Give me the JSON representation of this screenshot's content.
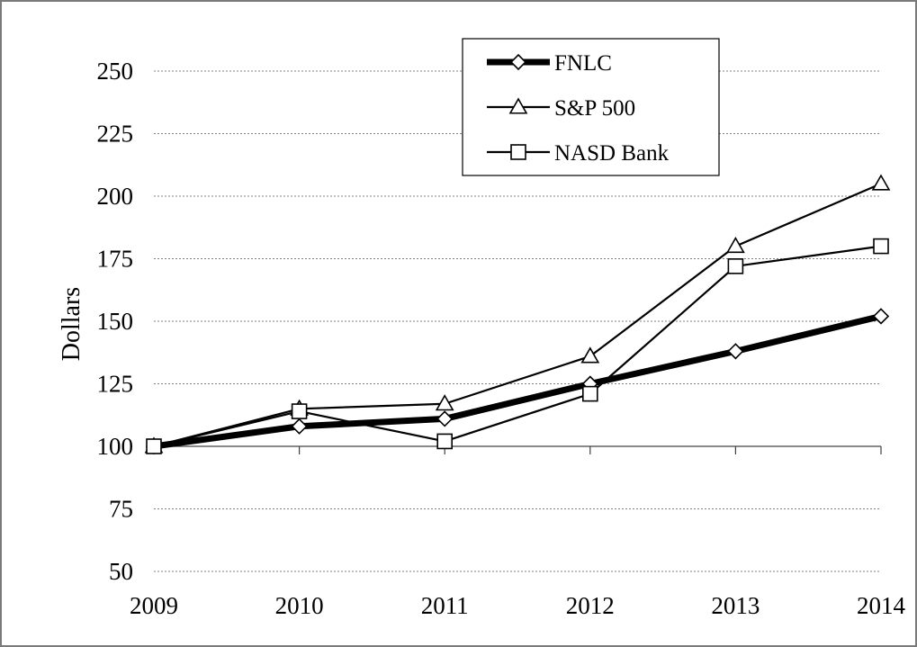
{
  "chart_data": {
    "type": "line",
    "title": "",
    "xlabel": "",
    "ylabel": "Dollars",
    "x": [
      "2009",
      "2010",
      "2011",
      "2012",
      "2013",
      "2014"
    ],
    "ylim": [
      50,
      250
    ],
    "yticks": [
      50,
      75,
      100,
      125,
      150,
      175,
      200,
      225,
      250
    ],
    "grid": "horizontal dotted",
    "legend_position": "top-right",
    "series": [
      {
        "name": "FNLC",
        "marker": "diamond",
        "style": "thick",
        "values": [
          100,
          108,
          111,
          125,
          138,
          152
        ]
      },
      {
        "name": "S&P 500",
        "marker": "triangle",
        "style": "thin",
        "values": [
          100,
          115,
          117,
          136,
          180,
          205
        ]
      },
      {
        "name": "NASD Bank",
        "marker": "square",
        "style": "thin",
        "values": [
          100,
          114,
          102,
          121,
          172,
          180
        ]
      }
    ],
    "colors": {
      "line": "#000000",
      "marker_fill": "#ffffff",
      "grid": "#808080"
    }
  }
}
